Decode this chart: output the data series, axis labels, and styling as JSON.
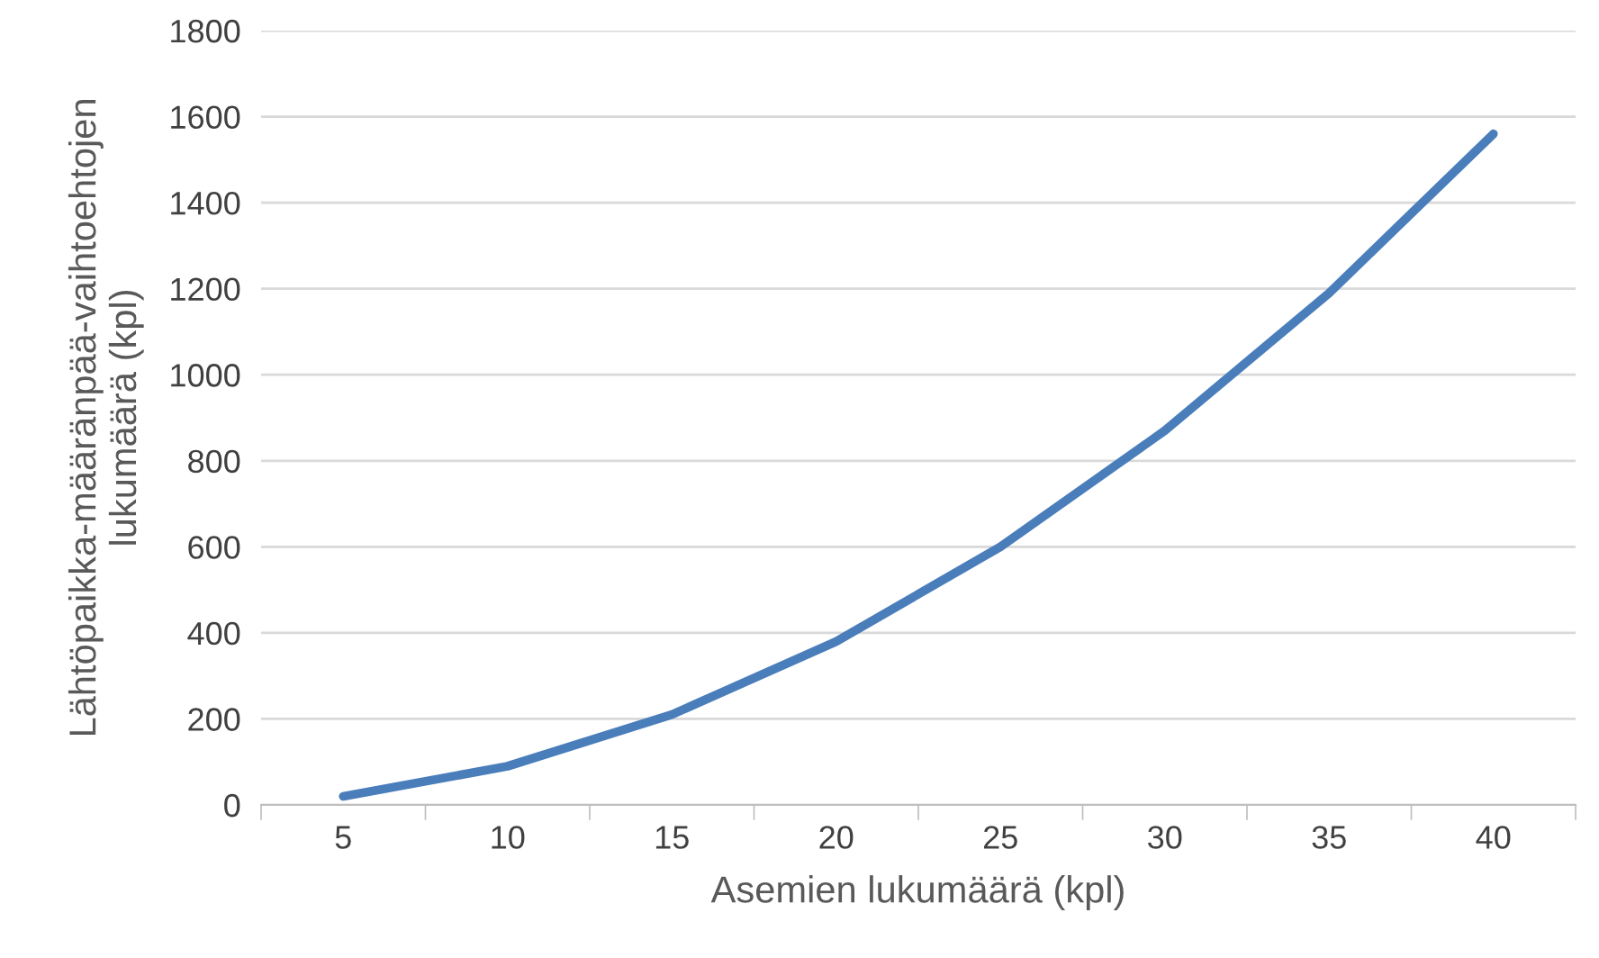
{
  "chart_data": {
    "type": "line",
    "xlabel": "Asemien lukumäärä (kpl)",
    "ylabel": "Lähtöpaikka-määränpää-vaihtoehtojen\nlukumäärä (kpl)",
    "categories": [
      "5",
      "10",
      "15",
      "20",
      "25",
      "30",
      "35",
      "40"
    ],
    "series": [
      {
        "color": "#4a7ebb",
        "values": [
          20,
          90,
          210,
          380,
          600,
          870,
          1190,
          1560
        ]
      }
    ],
    "ylim": [
      0,
      1800
    ],
    "yticks": [
      0,
      200,
      400,
      600,
      800,
      1000,
      1200,
      1400,
      1600,
      1800
    ],
    "grid": "y",
    "marker": "none",
    "line_style": "solid",
    "legend": false
  }
}
